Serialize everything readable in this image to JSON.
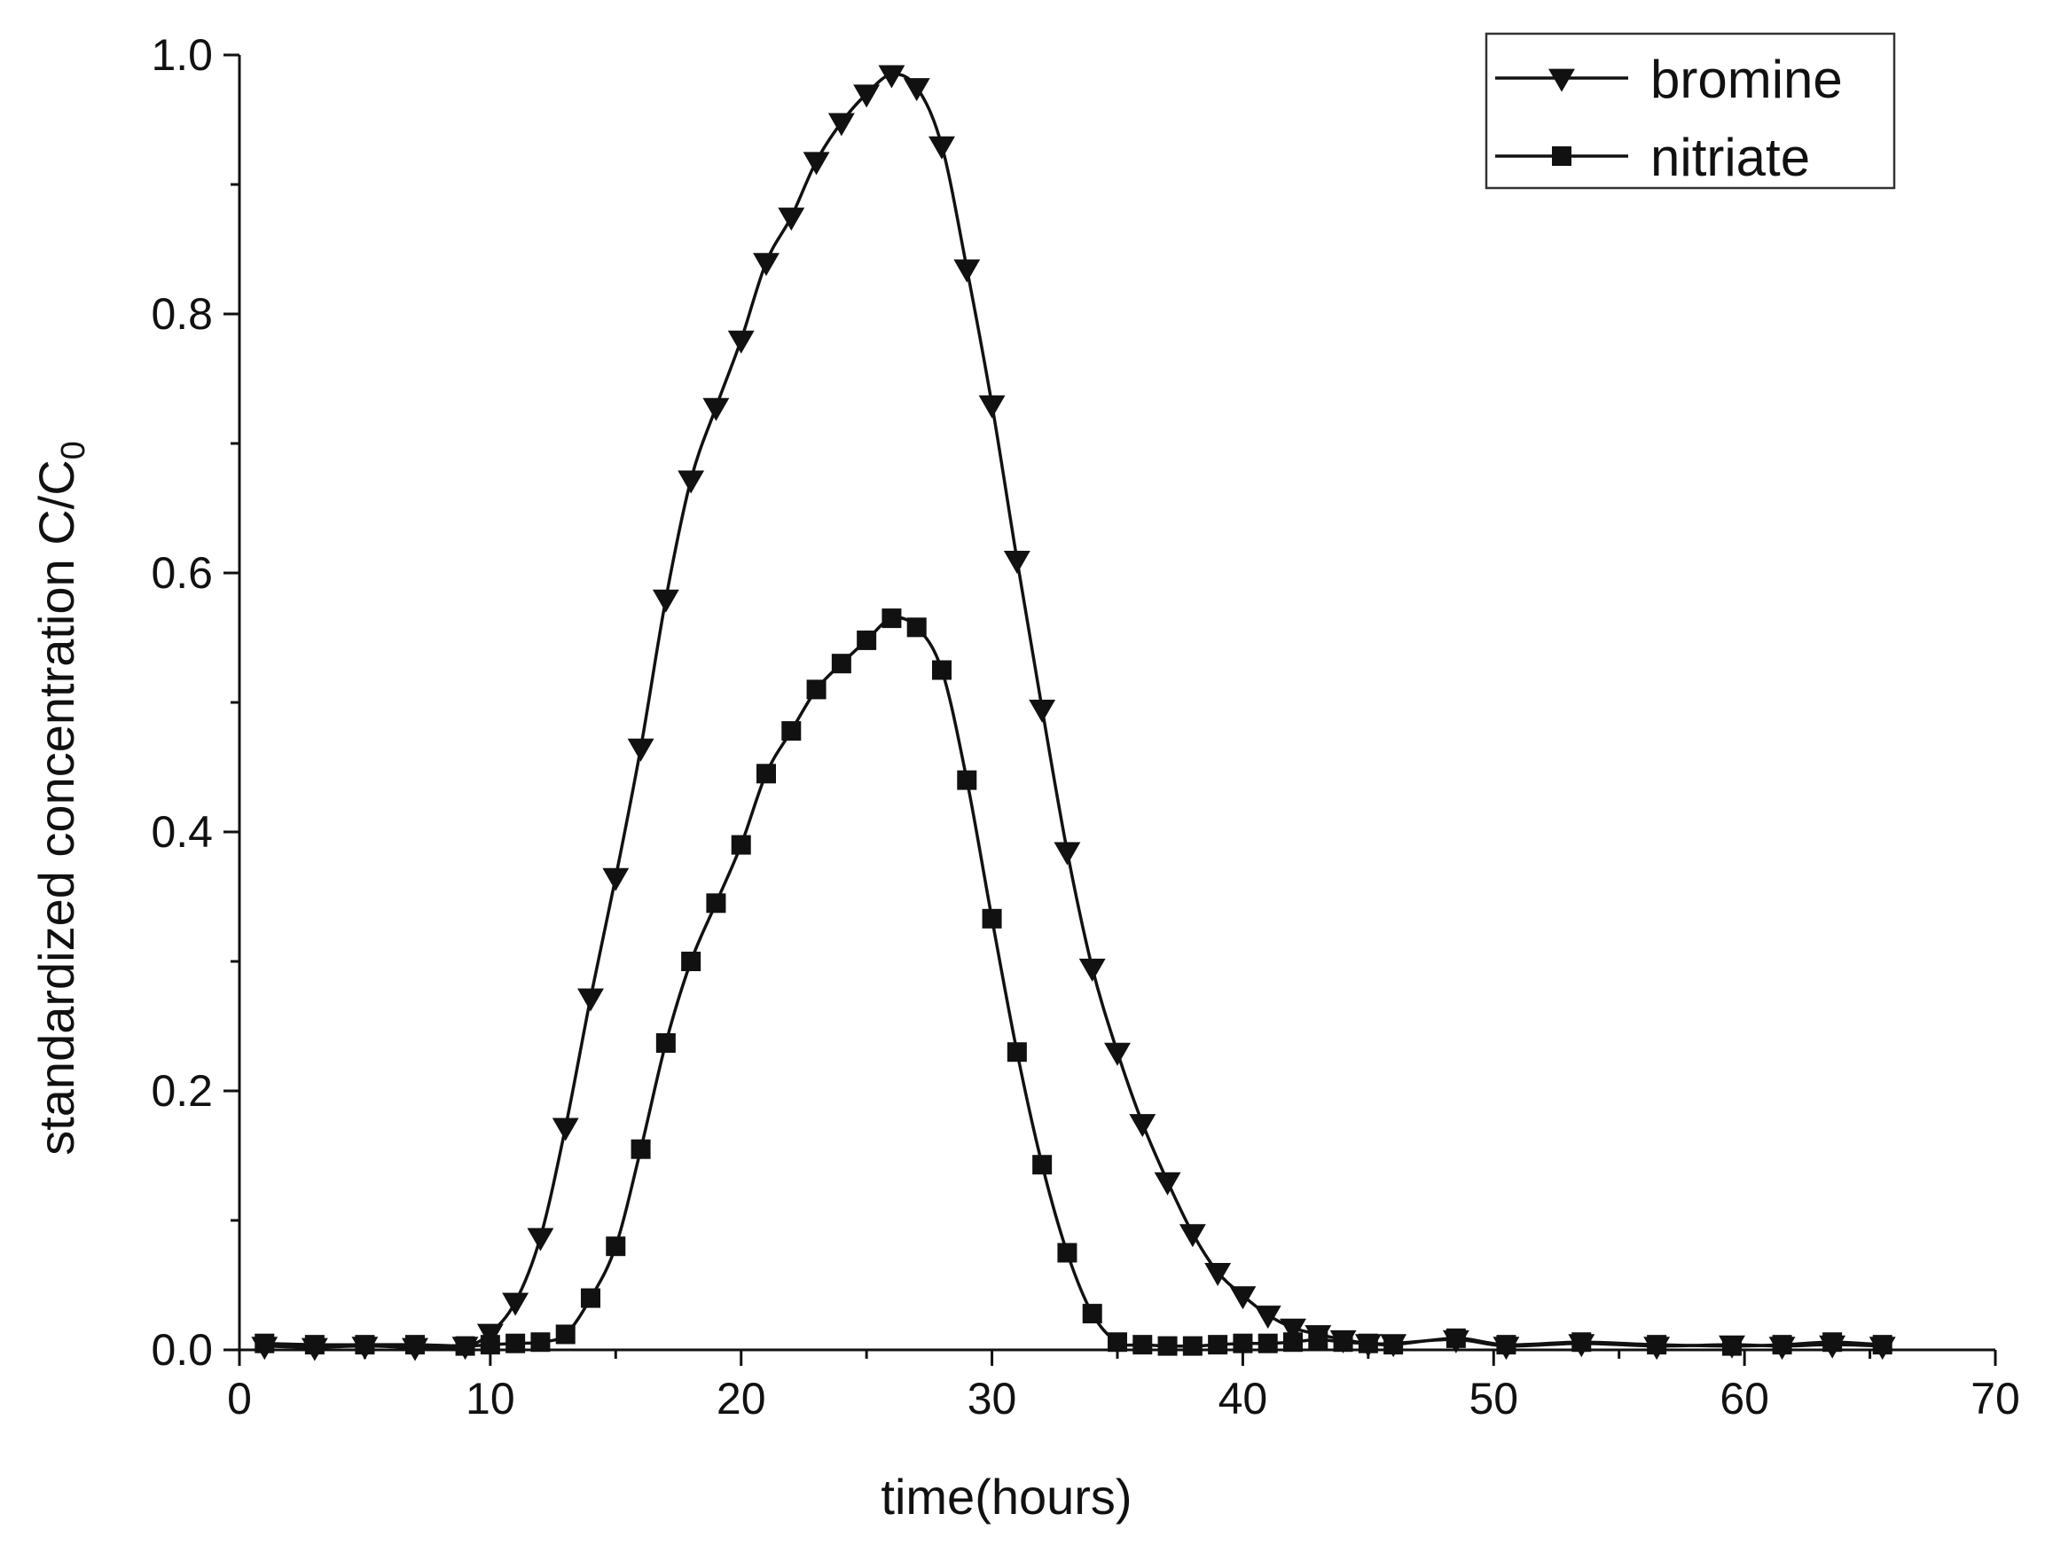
{
  "chart_data": {
    "type": "line",
    "xlabel": "time(hours)",
    "ylabel_main": "standardized concentration C/C",
    "ylabel_sub": "0",
    "xlim": [
      0,
      70
    ],
    "ylim": [
      0,
      1.0
    ],
    "x_ticks": [
      "0",
      "10",
      "20",
      "30",
      "40",
      "50",
      "60",
      "70"
    ],
    "y_ticks": [
      "0.0",
      "0.2",
      "0.4",
      "0.6",
      "0.8",
      "1.0"
    ],
    "grid": false,
    "legend_position": "top-right",
    "series": [
      {
        "name": "bromine",
        "marker": "triangle-down",
        "color": "#111111",
        "x": [
          1,
          3,
          5,
          7,
          9,
          10,
          11,
          12,
          13,
          14,
          15,
          16,
          17,
          18,
          19,
          20,
          21,
          22,
          23,
          24,
          25,
          26,
          27,
          28,
          29,
          30,
          31,
          32,
          33,
          34,
          35,
          36,
          37,
          38,
          39,
          40,
          41,
          42,
          43,
          44,
          45,
          46,
          48.5,
          50.5,
          53.5,
          56.5,
          59.5,
          61.5,
          63.5,
          65.5
        ],
        "y": [
          0.003,
          0.002,
          0.003,
          0.002,
          0.003,
          0.013,
          0.037,
          0.087,
          0.172,
          0.272,
          0.365,
          0.465,
          0.58,
          0.672,
          0.728,
          0.78,
          0.84,
          0.875,
          0.918,
          0.948,
          0.97,
          0.985,
          0.975,
          0.93,
          0.835,
          0.73,
          0.61,
          0.495,
          0.385,
          0.295,
          0.23,
          0.175,
          0.13,
          0.09,
          0.06,
          0.042,
          0.027,
          0.017,
          0.012,
          0.008,
          0.005,
          0.005,
          0.008,
          0.003,
          0.005,
          0.003,
          0.004,
          0.003,
          0.004,
          0.003
        ]
      },
      {
        "name": "nitriate",
        "marker": "square",
        "color": "#111111",
        "x": [
          1,
          3,
          5,
          7,
          9,
          10,
          11,
          12,
          13,
          14,
          15,
          16,
          17,
          18,
          19,
          20,
          21,
          22,
          23,
          24,
          25,
          26,
          27,
          28,
          29,
          30,
          31,
          32,
          33,
          34,
          35,
          36,
          37,
          38,
          39,
          40,
          41,
          42,
          43,
          44,
          45,
          46,
          48.5,
          50.5,
          53.5,
          56.5,
          59.5,
          61.5,
          63.5,
          65.5
        ],
        "y": [
          0.005,
          0.004,
          0.004,
          0.004,
          0.003,
          0.004,
          0.005,
          0.006,
          0.012,
          0.04,
          0.08,
          0.155,
          0.237,
          0.3,
          0.345,
          0.39,
          0.445,
          0.478,
          0.51,
          0.53,
          0.548,
          0.565,
          0.558,
          0.525,
          0.44,
          0.333,
          0.23,
          0.143,
          0.075,
          0.028,
          0.006,
          0.004,
          0.003,
          0.003,
          0.004,
          0.005,
          0.005,
          0.006,
          0.008,
          0.006,
          0.005,
          0.004,
          0.009,
          0.004,
          0.006,
          0.004,
          0.003,
          0.004,
          0.006,
          0.004
        ]
      }
    ]
  }
}
